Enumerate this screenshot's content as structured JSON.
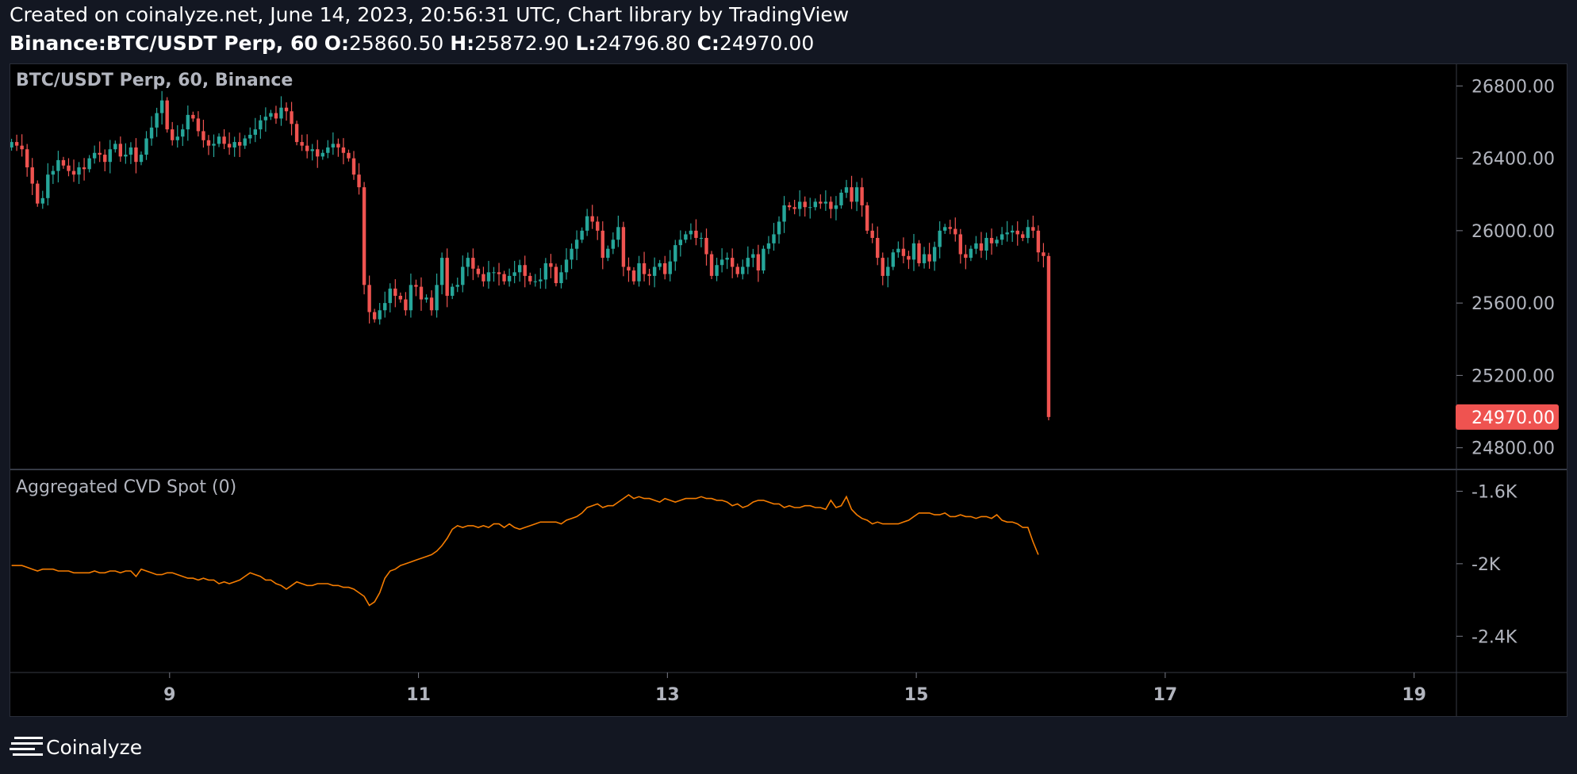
{
  "header": {
    "created_line": "Created on coinalyze.net, June 14, 2023, 20:56:31 UTC, Chart library by TradingView",
    "symbol": "Binance:BTC/USDT Perp, 60",
    "o_label": "O:",
    "o_value": "25860.50",
    "h_label": "H:",
    "h_value": "25872.90",
    "l_label": "L:",
    "l_value": "24796.80",
    "c_label": "C:",
    "c_value": "24970.00"
  },
  "footer": {
    "brand": "Coinalyze",
    "logo_icon": "menu-lines-icon"
  },
  "colors": {
    "up": "#26a69a",
    "down": "#ef5350",
    "cvd_line": "#f57c00",
    "price_badge": "#ef5350",
    "axis_text": "#b2b5be",
    "separator": "#363a45"
  },
  "chart_data": [
    {
      "type": "candlestick",
      "title": "BTC/USDT Perp, 60, Binance",
      "ylim": [
        24680,
        26920
      ],
      "y_ticks": [
        "26800.00",
        "26400.00",
        "26000.00",
        "25600.00",
        "25200.00",
        "24800.00"
      ],
      "y_tick_values": [
        26800,
        26400,
        26000,
        25600,
        25200,
        24800
      ],
      "last_price": "24970.00",
      "last_price_value": 24970,
      "x_ticks": [
        "9",
        "11",
        "13",
        "15",
        "17",
        "19"
      ],
      "x_tick_values": [
        9,
        11,
        13,
        15,
        17,
        19
      ],
      "xlim": [
        7.72,
        19.34
      ],
      "series": [
        {
          "name": "BTC/USDT Perp",
          "x_start": 7.73,
          "x_step": 0.041667,
          "close": [
            26490,
            26470,
            26450,
            26350,
            26260,
            26150,
            26180,
            26310,
            26330,
            26390,
            26360,
            26330,
            26310,
            26350,
            26340,
            26400,
            26430,
            26420,
            26380,
            26450,
            26480,
            26410,
            26420,
            26460,
            26380,
            26420,
            26510,
            26570,
            26650,
            26720,
            26560,
            26500,
            26520,
            26560,
            26640,
            26620,
            26550,
            26500,
            26470,
            26480,
            26520,
            26480,
            26460,
            26490,
            26470,
            26510,
            26530,
            26560,
            26610,
            26630,
            26650,
            26620,
            26680,
            26660,
            26590,
            26490,
            26470,
            26440,
            26450,
            26410,
            26430,
            26460,
            26480,
            26460,
            26430,
            26400,
            26310,
            26240,
            25700,
            25550,
            25510,
            25560,
            25600,
            25680,
            25640,
            25620,
            25560,
            25700,
            25690,
            25620,
            25630,
            25560,
            25700,
            25850,
            25640,
            25690,
            25700,
            25800,
            25850,
            25790,
            25760,
            25720,
            25770,
            25770,
            25760,
            25720,
            25750,
            25770,
            25810,
            25750,
            25720,
            25720,
            25730,
            25820,
            25800,
            25710,
            25770,
            25840,
            25900,
            25950,
            26000,
            26080,
            26050,
            26000,
            25850,
            25900,
            25950,
            26020,
            25800,
            25780,
            25720,
            25820,
            25760,
            25750,
            25800,
            25820,
            25760,
            25830,
            25920,
            25950,
            25980,
            26000,
            25960,
            25960,
            25870,
            25750,
            25810,
            25840,
            25850,
            25800,
            25760,
            25800,
            25850,
            25870,
            25780,
            25900,
            25930,
            25980,
            26050,
            26140,
            26130,
            26120,
            26160,
            26130,
            26130,
            26160,
            26150,
            26160,
            26120,
            26140,
            26210,
            26240,
            26160,
            26240,
            26140,
            26000,
            25960,
            25850,
            25750,
            25800,
            25880,
            25900,
            25860,
            25840,
            25930,
            25820,
            25870,
            25830,
            25910,
            26000,
            26020,
            26010,
            25980,
            25870,
            25850,
            25900,
            25930,
            25890,
            25960,
            25930,
            25950,
            25980,
            25990,
            26000,
            25980,
            25960,
            26020,
            26000,
            25880,
            25860,
            24970
          ],
          "open_first": 26460,
          "spread": 45
        }
      ]
    },
    {
      "type": "line",
      "title": "Aggregated CVD Spot (0)",
      "ylim": [
        -2600,
        -1480
      ],
      "y_ticks": [
        "-1.6K",
        "-2K",
        "-2.4K"
      ],
      "y_tick_values": [
        -1600,
        -2000,
        -2400
      ],
      "series": [
        {
          "name": "Aggregated CVD Spot",
          "x_start": 7.73,
          "x_step": 0.041667,
          "values": [
            -2010,
            -2010,
            -2010,
            -2020,
            -2030,
            -2040,
            -2030,
            -2030,
            -2030,
            -2040,
            -2040,
            -2040,
            -2050,
            -2050,
            -2050,
            -2050,
            -2040,
            -2050,
            -2050,
            -2040,
            -2040,
            -2050,
            -2040,
            -2040,
            -2070,
            -2030,
            -2040,
            -2050,
            -2060,
            -2060,
            -2050,
            -2050,
            -2060,
            -2070,
            -2080,
            -2080,
            -2090,
            -2080,
            -2090,
            -2090,
            -2110,
            -2100,
            -2110,
            -2100,
            -2090,
            -2070,
            -2050,
            -2060,
            -2070,
            -2090,
            -2090,
            -2110,
            -2120,
            -2140,
            -2120,
            -2100,
            -2110,
            -2120,
            -2120,
            -2110,
            -2110,
            -2110,
            -2120,
            -2120,
            -2130,
            -2130,
            -2140,
            -2160,
            -2180,
            -2230,
            -2210,
            -2160,
            -2080,
            -2040,
            -2030,
            -2010,
            -2000,
            -1990,
            -1980,
            -1970,
            -1960,
            -1950,
            -1930,
            -1900,
            -1860,
            -1810,
            -1790,
            -1800,
            -1790,
            -1790,
            -1800,
            -1790,
            -1800,
            -1780,
            -1780,
            -1800,
            -1780,
            -1800,
            -1810,
            -1800,
            -1790,
            -1780,
            -1770,
            -1770,
            -1770,
            -1770,
            -1780,
            -1760,
            -1750,
            -1740,
            -1720,
            -1690,
            -1680,
            -1670,
            -1690,
            -1680,
            -1680,
            -1660,
            -1640,
            -1620,
            -1640,
            -1630,
            -1640,
            -1640,
            -1650,
            -1660,
            -1640,
            -1650,
            -1660,
            -1650,
            -1640,
            -1640,
            -1640,
            -1630,
            -1640,
            -1640,
            -1650,
            -1650,
            -1660,
            -1680,
            -1670,
            -1690,
            -1680,
            -1660,
            -1650,
            -1650,
            -1660,
            -1670,
            -1670,
            -1690,
            -1680,
            -1690,
            -1690,
            -1680,
            -1680,
            -1690,
            -1690,
            -1700,
            -1650,
            -1690,
            -1680,
            -1630,
            -1700,
            -1730,
            -1750,
            -1760,
            -1780,
            -1770,
            -1780,
            -1780,
            -1780,
            -1780,
            -1770,
            -1760,
            -1740,
            -1720,
            -1720,
            -1720,
            -1730,
            -1730,
            -1720,
            -1740,
            -1740,
            -1730,
            -1740,
            -1740,
            -1750,
            -1740,
            -1740,
            -1750,
            -1730,
            -1760,
            -1770,
            -1770,
            -1780,
            -1800,
            -1800,
            -1880,
            -1950
          ]
        }
      ]
    }
  ]
}
